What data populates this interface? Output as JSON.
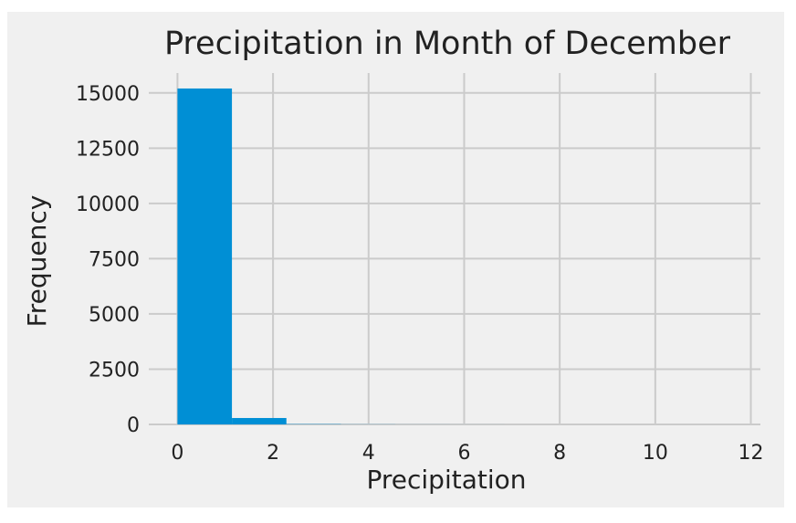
{
  "chart_data": {
    "type": "bar",
    "title": "Precipitation in Month of December",
    "xlabel": "Precipitation",
    "ylabel": "Frequency",
    "xlim": [
      -0.6,
      12.2
    ],
    "ylim": [
      0,
      15900
    ],
    "xticks": [
      0,
      2,
      4,
      6,
      8,
      10,
      12
    ],
    "yticks": [
      0,
      2500,
      5000,
      7500,
      10000,
      12500,
      15000
    ],
    "grid": true,
    "bin_edges": [
      0,
      1.14,
      2.28,
      3.42,
      4.56,
      5.7,
      6.84,
      7.98,
      9.12,
      10.26,
      11.4
    ],
    "values": [
      15200,
      290,
      15,
      5,
      2,
      1,
      0,
      0,
      0,
      0
    ],
    "bar_color": "#008fd5",
    "grid_color": "#cbcbcb",
    "background_color": "#f0f0f0"
  }
}
